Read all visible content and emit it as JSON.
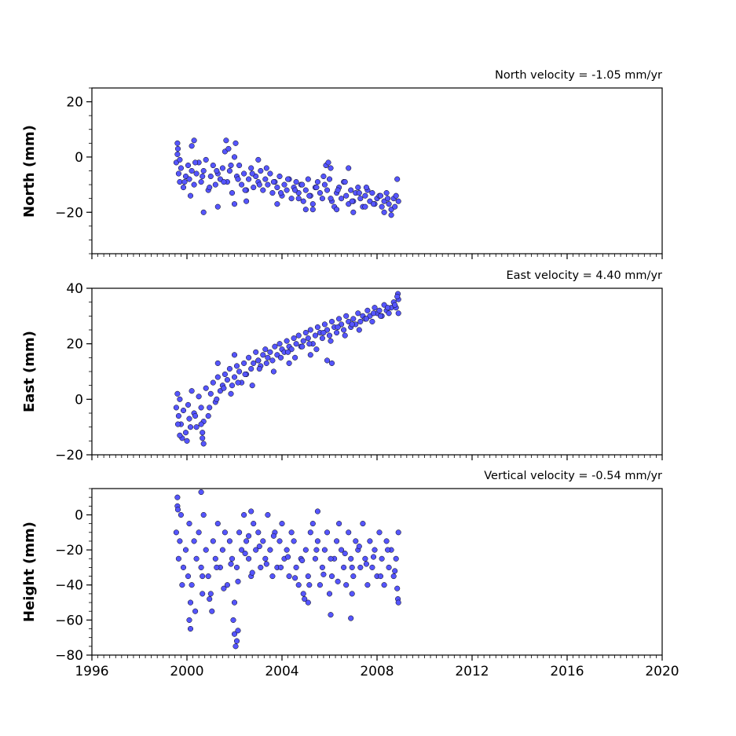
{
  "colors": {
    "marker_fill": "#5555ff",
    "marker_edge": "#000000",
    "axes": "#000000",
    "background": "#ffffff"
  },
  "chart_data": [
    {
      "type": "scatter",
      "ylabel": "North (mm)",
      "annotation": "North velocity = -1.05 mm/yr",
      "xlim": [
        1996,
        2020
      ],
      "ylim": [
        -35,
        25
      ],
      "yticks": [
        20,
        0,
        -20
      ],
      "ytick_labels": [
        "20",
        "0",
        "−20"
      ],
      "xtick_labels_visible": false,
      "grid": false,
      "series": [
        {
          "points_sampled": true,
          "x": [
            1999.55,
            1999.6,
            1999.65,
            1999.7,
            1999.75,
            1999.85,
            1999.95,
            2000.05,
            2000.1,
            2000.2,
            2000.3,
            2000.4,
            2000.5,
            2000.6,
            2000.7,
            2000.8,
            2000.9,
            2001.0,
            2001.1,
            2001.2,
            2001.3,
            2001.4,
            2001.5,
            2001.6,
            2001.7,
            2001.8,
            2001.9,
            2002.0,
            2002.1,
            2002.2,
            2002.3,
            2002.4,
            2002.5,
            2002.6,
            2002.7,
            2002.8,
            2002.9,
            2003.0,
            2003.1,
            2003.2,
            2003.3,
            2003.4,
            2003.5,
            2003.6,
            2003.7,
            2003.8,
            2003.9,
            2004.0,
            2004.1,
            2004.2,
            2004.3,
            2004.4,
            2004.5,
            2004.6,
            2004.7,
            2004.8,
            2004.9,
            2005.0,
            2005.1,
            2005.2,
            2005.3,
            2005.4,
            2005.5,
            2005.6,
            2005.7,
            2005.8,
            2005.9,
            2006.0,
            2006.1,
            2006.2,
            2006.3,
            2006.4,
            2006.5,
            2006.6,
            2006.7,
            2006.8,
            2006.9,
            2007.0,
            2007.1,
            2007.2,
            2007.3,
            2007.4,
            2007.5,
            2007.6,
            2007.7,
            2007.8,
            2007.9,
            2008.0,
            2008.1,
            2008.2,
            2008.3,
            2008.4,
            2008.5,
            2008.6,
            2008.7,
            2008.8,
            2008.9,
            1999.6,
            1999.7,
            1999.9,
            2000.15,
            2000.35,
            2000.65,
            2000.95,
            2001.25,
            2001.55,
            2001.85,
            2002.15,
            2002.45,
            2002.75,
            2003.05,
            2003.35,
            2003.65,
            2003.95,
            2004.25,
            2004.55,
            2004.85,
            2005.15,
            2005.45,
            2005.75,
            2006.05,
            2006.35,
            2006.65,
            2006.95,
            2007.25,
            2007.55,
            2007.85,
            2008.15,
            2008.45,
            2008.75,
            1999.62,
            2000.2,
            2000.3,
            2001.65,
            2001.75,
            2002.05,
            2003.0,
            2005.85,
            2005.95,
            2006.05,
            2006.8,
            2002.0,
            2002.5,
            2004.7,
            2005.3,
            2006.3,
            2007.5,
            2008.3,
            2008.85,
            2000.7,
            2001.3,
            2003.8,
            2005.0,
            2007.0,
            2008.6
          ],
          "y": [
            -2,
            1,
            -6,
            -9,
            -4,
            -11,
            -7,
            -3,
            -8,
            -5,
            -10,
            -6,
            -2,
            -9,
            -5,
            -1,
            -12,
            -7,
            -3,
            -10,
            -6,
            -8,
            -4,
            2,
            -9,
            -5,
            -13,
            0,
            -7,
            -3,
            -10,
            -6,
            -12,
            -8,
            -4,
            -11,
            -7,
            -9,
            -5,
            -12,
            -8,
            -10,
            -6,
            -13,
            -9,
            -11,
            -7,
            -14,
            -10,
            -12,
            -8,
            -15,
            -11,
            -9,
            -13,
            -10,
            -16,
            -12,
            -8,
            -14,
            -17,
            -11,
            -9,
            -13,
            -15,
            -10,
            -12,
            -8,
            -16,
            -18,
            -13,
            -11,
            -15,
            -9,
            -14,
            -17,
            -12,
            -16,
            -13,
            -11,
            -15,
            -18,
            -14,
            -12,
            -16,
            -13,
            -17,
            -15,
            -14,
            -18,
            -16,
            -13,
            -17,
            -19,
            -15,
            -14,
            -16,
            5,
            -1,
            -9,
            -14,
            -2,
            -7,
            -11,
            -5,
            -9,
            -3,
            -8,
            -12,
            -6,
            -10,
            -4,
            -9,
            -13,
            -8,
            -12,
            -10,
            -14,
            -11,
            -7,
            -15,
            -12,
            -9,
            -16,
            -13,
            -11,
            -17,
            -14,
            -15,
            -18,
            3,
            4,
            6,
            6,
            3,
            5,
            -1,
            -3,
            -2,
            -4,
            -4,
            -17,
            -16,
            -15,
            -19,
            -19,
            -18,
            -20,
            -8,
            -20,
            -18,
            -17,
            -19,
            -20,
            -21
          ]
        }
      ]
    },
    {
      "type": "scatter",
      "ylabel": "East (mm)",
      "annotation": "East velocity = 4.40 mm/yr",
      "xlim": [
        1996,
        2020
      ],
      "ylim": [
        -20,
        40
      ],
      "yticks": [
        40,
        20,
        0,
        -20
      ],
      "ytick_labels": [
        "40",
        "20",
        "0",
        "−20"
      ],
      "xtick_labels_visible": false,
      "grid": false,
      "series": [
        {
          "points_sampled": true,
          "x": [
            1999.55,
            1999.6,
            1999.65,
            1999.7,
            1999.75,
            1999.85,
            1999.95,
            2000.05,
            2000.1,
            2000.2,
            2000.3,
            2000.4,
            2000.5,
            2000.6,
            2000.7,
            2000.8,
            2000.9,
            2001.0,
            2001.1,
            2001.2,
            2001.3,
            2001.4,
            2001.5,
            2001.6,
            2001.7,
            2001.8,
            2001.9,
            2002.0,
            2002.1,
            2002.2,
            2002.3,
            2002.4,
            2002.5,
            2002.6,
            2002.7,
            2002.8,
            2002.9,
            2003.0,
            2003.1,
            2003.2,
            2003.3,
            2003.4,
            2003.5,
            2003.6,
            2003.7,
            2003.8,
            2003.9,
            2004.0,
            2004.1,
            2004.2,
            2004.3,
            2004.4,
            2004.5,
            2004.6,
            2004.7,
            2004.8,
            2004.9,
            2005.0,
            2005.1,
            2005.2,
            2005.3,
            2005.4,
            2005.5,
            2005.6,
            2005.7,
            2005.8,
            2005.9,
            2006.0,
            2006.1,
            2006.2,
            2006.3,
            2006.4,
            2006.5,
            2006.6,
            2006.7,
            2006.8,
            2006.9,
            2007.0,
            2007.1,
            2007.2,
            2007.3,
            2007.4,
            2007.5,
            2007.6,
            2007.7,
            2007.8,
            2007.9,
            2008.0,
            2008.1,
            2008.2,
            2008.3,
            2008.4,
            2008.5,
            2008.6,
            2008.7,
            2008.8,
            2008.9,
            1999.62,
            1999.8,
            2000.15,
            2000.35,
            2000.65,
            2000.95,
            2001.25,
            2001.55,
            2001.85,
            2002.15,
            2002.45,
            2002.75,
            2003.05,
            2003.35,
            2003.65,
            2003.95,
            2004.25,
            2004.55,
            2004.85,
            2005.15,
            2005.45,
            2005.75,
            2006.05,
            2006.35,
            2006.65,
            2006.95,
            2007.25,
            2007.55,
            2007.85,
            2008.15,
            2008.45,
            2008.75,
            2008.88,
            2008.9,
            2008.85,
            1999.7,
            2000.0,
            2000.6,
            2000.65,
            2000.7,
            2001.3,
            2002.0,
            2003.0,
            2004.3,
            2005.2,
            2005.9,
            2006.1
          ],
          "y": [
            -3,
            2,
            -6,
            0,
            -9,
            -4,
            -12,
            -2,
            -7,
            3,
            -5,
            -10,
            1,
            -3,
            -8,
            4,
            -6,
            2,
            6,
            -1,
            8,
            3,
            5,
            9,
            7,
            11,
            5,
            8,
            12,
            10,
            6,
            13,
            9,
            15,
            11,
            13,
            17,
            14,
            12,
            16,
            18,
            15,
            17,
            14,
            19,
            16,
            20,
            18,
            17,
            21,
            19,
            18,
            22,
            20,
            23,
            19,
            21,
            24,
            22,
            25,
            20,
            23,
            26,
            24,
            22,
            27,
            25,
            23,
            28,
            26,
            24,
            29,
            27,
            25,
            30,
            28,
            26,
            29,
            27,
            31,
            28,
            30,
            29,
            32,
            30,
            28,
            33,
            31,
            32,
            30,
            34,
            32,
            31,
            33,
            35,
            33,
            36,
            -9,
            -14,
            -10,
            -6,
            -12,
            -3,
            0,
            4,
            2,
            6,
            9,
            5,
            11,
            13,
            10,
            15,
            17,
            15,
            19,
            20,
            18,
            24,
            21,
            26,
            23,
            27,
            25,
            29,
            31,
            30,
            33,
            34,
            38,
            31,
            37,
            -13,
            -15,
            -9,
            -14,
            -16,
            13,
            16,
            14,
            13,
            16,
            14,
            13
          ]
        }
      ]
    },
    {
      "type": "scatter",
      "ylabel": "Height (mm)",
      "annotation": "Vertical velocity = -0.54 mm/yr",
      "xlim": [
        1996,
        2020
      ],
      "ylim": [
        -80,
        15
      ],
      "yticks": [
        0,
        -20,
        -40,
        -60,
        -80
      ],
      "ytick_labels": [
        "0",
        "−20",
        "−40",
        "−60",
        "−80"
      ],
      "xticks": [
        1996,
        2000,
        2004,
        2008,
        2012,
        2016,
        2020
      ],
      "xtick_labels": [
        "1996",
        "2000",
        "2004",
        "2008",
        "2012",
        "2016",
        "2020"
      ],
      "xtick_labels_visible": true,
      "grid": false,
      "series": [
        {
          "points_sampled": true,
          "x": [
            1999.55,
            1999.6,
            1999.65,
            1999.7,
            1999.75,
            1999.85,
            1999.95,
            2000.05,
            2000.1,
            2000.2,
            2000.3,
            2000.4,
            2000.5,
            2000.6,
            2000.7,
            2000.8,
            2000.9,
            2001.0,
            2001.1,
            2001.2,
            2001.3,
            2001.4,
            2001.5,
            2001.6,
            2001.7,
            2001.8,
            2001.9,
            2002.0,
            2002.1,
            2002.2,
            2002.3,
            2002.4,
            2002.5,
            2002.6,
            2002.7,
            2002.8,
            2002.9,
            2003.0,
            2003.1,
            2003.2,
            2003.3,
            2003.4,
            2003.5,
            2003.6,
            2003.7,
            2003.8,
            2003.9,
            2004.0,
            2004.1,
            2004.2,
            2004.3,
            2004.4,
            2004.5,
            2004.6,
            2004.7,
            2004.8,
            2004.9,
            2005.0,
            2005.1,
            2005.2,
            2005.3,
            2005.4,
            2005.5,
            2005.6,
            2005.7,
            2005.8,
            2005.9,
            2006.0,
            2006.1,
            2006.2,
            2006.3,
            2006.4,
            2006.5,
            2006.6,
            2006.7,
            2006.8,
            2006.9,
            2007.0,
            2007.1,
            2007.2,
            2007.3,
            2007.4,
            2007.5,
            2007.6,
            2007.7,
            2007.8,
            2007.9,
            2008.0,
            2008.1,
            2008.2,
            2008.3,
            2008.4,
            2008.5,
            2008.6,
            2008.7,
            2008.8,
            2008.9,
            1999.62,
            1999.8,
            2000.15,
            2000.35,
            2000.65,
            2000.95,
            2001.25,
            2001.55,
            2001.85,
            2002.15,
            2002.45,
            2002.75,
            2003.05,
            2003.35,
            2003.65,
            2003.95,
            2004.25,
            2004.55,
            2004.85,
            2005.15,
            2005.45,
            2005.75,
            2006.05,
            2006.35,
            2006.65,
            2006.95,
            2007.25,
            2007.55,
            2007.85,
            2008.15,
            2008.45,
            2008.75,
            1999.6,
            2000.1,
            2000.15,
            2000.65,
            2001.05,
            2001.95,
            2002.0,
            2002.05,
            2002.1,
            2002.15,
            2004.95,
            2005.1,
            2006.05,
            2006.95,
            2008.88,
            2008.9,
            2008.85,
            2000.6,
            2002.6,
            2002.7,
            2005.5,
            2006.9
          ],
          "y": [
            -10,
            5,
            -25,
            -15,
            0,
            -30,
            -20,
            -35,
            -5,
            -40,
            -15,
            -25,
            -10,
            -30,
            0,
            -20,
            -35,
            -45,
            -15,
            -25,
            -5,
            -30,
            -20,
            -10,
            -40,
            -15,
            -25,
            -50,
            -30,
            -10,
            -20,
            0,
            -15,
            -25,
            -35,
            -5,
            -20,
            -10,
            -30,
            -15,
            -25,
            0,
            -20,
            -35,
            -10,
            -30,
            -15,
            -5,
            -25,
            -20,
            -35,
            -10,
            -15,
            -30,
            -40,
            -25,
            -45,
            -20,
            -35,
            -10,
            -5,
            -25,
            -15,
            -40,
            -30,
            -20,
            -10,
            -45,
            -35,
            -25,
            -15,
            -5,
            -20,
            -30,
            -40,
            -10,
            -25,
            -35,
            -15,
            -20,
            -30,
            -5,
            -25,
            -40,
            -15,
            -30,
            -20,
            -35,
            -10,
            -25,
            -40,
            -15,
            -30,
            -20,
            -35,
            -25,
            -10,
            3,
            -40,
            -50,
            -55,
            -35,
            -48,
            -30,
            -42,
            -28,
            -38,
            -22,
            -33,
            -18,
            -28,
            -12,
            -30,
            -24,
            -36,
            -26,
            -40,
            -20,
            -34,
            -25,
            -38,
            -22,
            -30,
            -18,
            -28,
            -24,
            -35,
            -20,
            -32,
            10,
            -60,
            -65,
            -45,
            -55,
            -60,
            -68,
            -75,
            -72,
            -66,
            -48,
            -50,
            -57,
            -45,
            -48,
            -50,
            -42,
            13,
            -12,
            2,
            2,
            -59
          ]
        }
      ]
    }
  ]
}
